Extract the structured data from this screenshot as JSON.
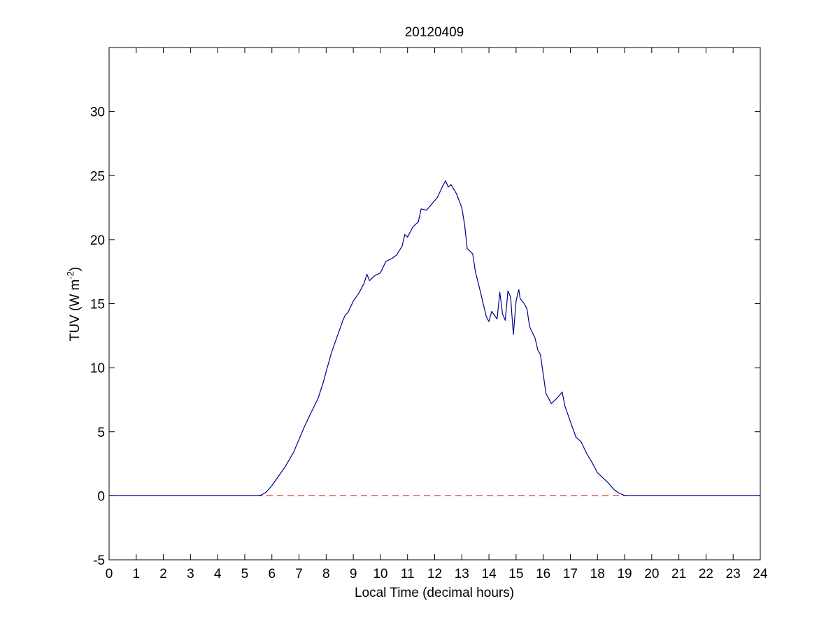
{
  "chart_data": {
    "type": "line",
    "title": "20120409",
    "xlabel": "Local Time (decimal hours)",
    "ylabel": "TUV (W m",
    "ylabel_exponent": "-2",
    "ylabel_close": ")",
    "xlim": [
      0,
      24
    ],
    "ylim": [
      -5,
      35
    ],
    "xticks": [
      "0",
      "1",
      "2",
      "3",
      "4",
      "5",
      "6",
      "7",
      "8",
      "9",
      "10",
      "11",
      "12",
      "13",
      "14",
      "15",
      "16",
      "17",
      "18",
      "19",
      "20",
      "21",
      "22",
      "23",
      "24"
    ],
    "yticks": [
      "-5",
      "0",
      "5",
      "10",
      "15",
      "20",
      "25",
      "30"
    ],
    "grid": false,
    "colors": {
      "series": "#00008b",
      "reference": "#cc0000"
    },
    "reference_line": {
      "y": 0,
      "style": "dashed"
    },
    "series": [
      {
        "points": [
          [
            0,
            0
          ],
          [
            5.5,
            0
          ],
          [
            5.6,
            0.05
          ],
          [
            5.8,
            0.3
          ],
          [
            6.0,
            0.8
          ],
          [
            6.2,
            1.4
          ],
          [
            6.5,
            2.3
          ],
          [
            6.8,
            3.4
          ],
          [
            7.0,
            4.4
          ],
          [
            7.2,
            5.4
          ],
          [
            7.4,
            6.3
          ],
          [
            7.7,
            7.6
          ],
          [
            7.9,
            8.9
          ],
          [
            8.0,
            9.7
          ],
          [
            8.2,
            11.2
          ],
          [
            8.4,
            12.4
          ],
          [
            8.6,
            13.6
          ],
          [
            8.7,
            14.1
          ],
          [
            8.8,
            14.3
          ],
          [
            9.0,
            15.2
          ],
          [
            9.2,
            15.8
          ],
          [
            9.4,
            16.6
          ],
          [
            9.5,
            17.3
          ],
          [
            9.6,
            16.8
          ],
          [
            9.8,
            17.2
          ],
          [
            10.0,
            17.4
          ],
          [
            10.2,
            18.3
          ],
          [
            10.4,
            18.5
          ],
          [
            10.6,
            18.8
          ],
          [
            10.8,
            19.5
          ],
          [
            10.9,
            20.4
          ],
          [
            11.0,
            20.2
          ],
          [
            11.2,
            21.0
          ],
          [
            11.4,
            21.4
          ],
          [
            11.5,
            22.4
          ],
          [
            11.7,
            22.3
          ],
          [
            11.9,
            22.8
          ],
          [
            12.1,
            23.3
          ],
          [
            12.3,
            24.2
          ],
          [
            12.4,
            24.6
          ],
          [
            12.5,
            24.1
          ],
          [
            12.6,
            24.3
          ],
          [
            12.8,
            23.6
          ],
          [
            13.0,
            22.5
          ],
          [
            13.1,
            21.2
          ],
          [
            13.2,
            19.3
          ],
          [
            13.4,
            18.9
          ],
          [
            13.5,
            17.5
          ],
          [
            13.7,
            15.8
          ],
          [
            13.9,
            14.0
          ],
          [
            14.0,
            13.6
          ],
          [
            14.1,
            14.4
          ],
          [
            14.2,
            14.1
          ],
          [
            14.3,
            13.8
          ],
          [
            14.4,
            15.9
          ],
          [
            14.5,
            14.2
          ],
          [
            14.6,
            13.7
          ],
          [
            14.7,
            16.0
          ],
          [
            14.8,
            15.5
          ],
          [
            14.85,
            14.0
          ],
          [
            14.9,
            12.6
          ],
          [
            15.0,
            15.2
          ],
          [
            15.1,
            16.1
          ],
          [
            15.15,
            15.4
          ],
          [
            15.3,
            15.0
          ],
          [
            15.4,
            14.6
          ],
          [
            15.5,
            13.2
          ],
          [
            15.7,
            12.3
          ],
          [
            15.8,
            11.4
          ],
          [
            15.9,
            11.0
          ],
          [
            16.0,
            9.5
          ],
          [
            16.1,
            8.0
          ],
          [
            16.3,
            7.2
          ],
          [
            16.5,
            7.6
          ],
          [
            16.7,
            8.1
          ],
          [
            16.8,
            7.0
          ],
          [
            17.0,
            5.8
          ],
          [
            17.2,
            4.6
          ],
          [
            17.4,
            4.2
          ],
          [
            17.6,
            3.3
          ],
          [
            17.8,
            2.6
          ],
          [
            18.0,
            1.8
          ],
          [
            18.2,
            1.4
          ],
          [
            18.4,
            1.0
          ],
          [
            18.6,
            0.5
          ],
          [
            18.8,
            0.2
          ],
          [
            19.0,
            0.02
          ],
          [
            19.1,
            0
          ],
          [
            24,
            0
          ]
        ]
      }
    ]
  }
}
